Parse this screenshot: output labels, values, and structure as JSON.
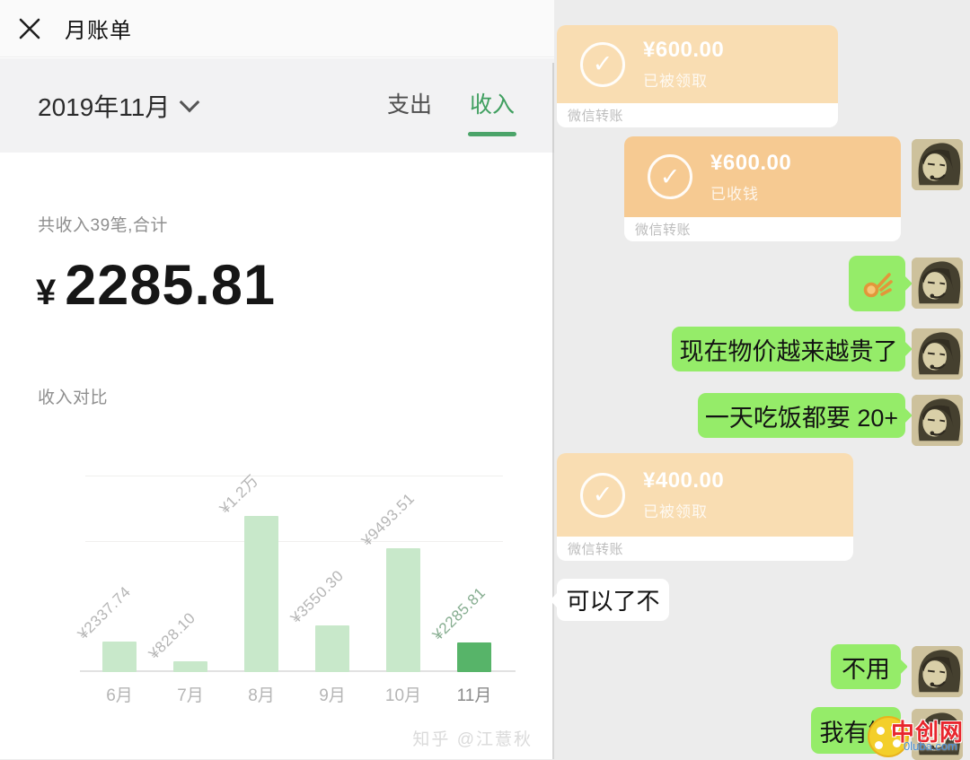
{
  "icons": {
    "check": "✓"
  },
  "left_panel": {
    "title": "月账单",
    "month_selector": "2019年11月",
    "tabs": {
      "expense": "支出",
      "income": "收入"
    },
    "summary_label": "共收入39笔,合计",
    "currency": "¥",
    "total_amount": "2285.81",
    "compare_label": "收入对比",
    "watermark": "知乎 @江薏秋"
  },
  "chart_data": {
    "type": "bar",
    "title": "收入对比",
    "categories": [
      "6月",
      "7月",
      "8月",
      "9月",
      "10月",
      "11月"
    ],
    "values": [
      2337.74,
      828.1,
      12000,
      3550.3,
      9493.51,
      2285.81
    ],
    "bar_labels": [
      "¥2337.74",
      "¥828.10",
      "¥1.2万",
      "¥3550.30",
      "¥9493.51",
      "¥2285.81"
    ],
    "highlight_index": 5,
    "xlabel": "",
    "ylabel": "",
    "ylim": [
      0,
      15500
    ],
    "gridlines": [
      10000,
      15000
    ],
    "legend": "none",
    "colors": {
      "bar": "#c8e8ca",
      "highlight_bar": "#57b469"
    }
  },
  "chat": {
    "transfer_label": "微信转账",
    "messages": [
      {
        "type": "transfer",
        "amount": "¥600.00",
        "status": "已被领取"
      },
      {
        "type": "transfer",
        "amount": "¥600.00",
        "status": "已收钱"
      },
      {
        "type": "emoji",
        "emoji": "ok-hand"
      },
      {
        "type": "text",
        "text": "现在物价越来越贵了"
      },
      {
        "type": "text",
        "text": "一天吃饭都要 20+"
      },
      {
        "type": "transfer",
        "amount": "¥400.00",
        "status": "已被领取"
      },
      {
        "type": "text",
        "text": "可以了不"
      },
      {
        "type": "text",
        "text": "不用"
      },
      {
        "type": "text",
        "text": "我有钱"
      }
    ],
    "watermark": {
      "name": "中创网",
      "domain": "0luba.com"
    }
  }
}
